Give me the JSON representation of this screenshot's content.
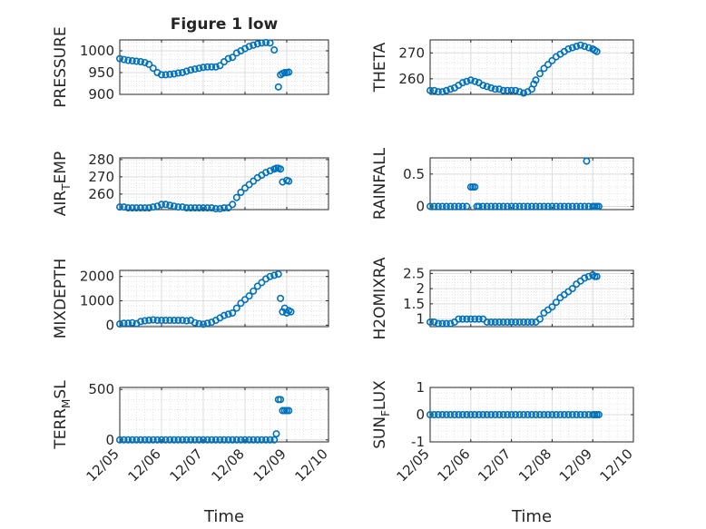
{
  "figure_title": "Figure 1 low",
  "marker_color": "#0072BD",
  "chart_data": [
    {
      "type": "scatter",
      "id": "pressure",
      "title": "Figure 1 low",
      "ylabel": "PRESSURE",
      "xlabel": "",
      "ylim": [
        900,
        1025
      ],
      "yticks": [
        900,
        950,
        1000
      ],
      "ytick_labels": [
        "900",
        "950",
        "1000"
      ],
      "x": [
        0.0,
        0.1,
        0.2,
        0.3,
        0.4,
        0.5,
        0.6,
        0.7,
        0.8,
        0.9,
        1.0,
        1.1,
        1.2,
        1.3,
        1.4,
        1.5,
        1.6,
        1.7,
        1.8,
        1.9,
        2.0,
        2.1,
        2.2,
        2.3,
        2.4,
        2.5,
        2.6,
        2.7,
        2.8,
        2.9,
        3.0,
        3.1,
        3.2,
        3.3,
        3.4,
        3.5,
        3.6,
        3.7,
        3.8,
        3.85,
        3.9,
        3.95,
        4.0,
        4.05
      ],
      "y": [
        982,
        980,
        978,
        977,
        976,
        975,
        973,
        969,
        960,
        950,
        945,
        945,
        946,
        947,
        949,
        950,
        953,
        956,
        958,
        960,
        962,
        963,
        963,
        963,
        966,
        975,
        982,
        985,
        995,
        1000,
        1005,
        1010,
        1013,
        1016,
        1018,
        1019,
        1018,
        1002,
        917,
        945,
        948,
        950,
        950,
        951
      ]
    },
    {
      "type": "scatter",
      "id": "theta",
      "title": "",
      "ylabel": "THETA",
      "xlabel": "",
      "ylim": [
        254,
        275
      ],
      "yticks": [
        260,
        270
      ],
      "ytick_labels": [
        "260",
        "270"
      ],
      "x": [
        0.0,
        0.1,
        0.2,
        0.3,
        0.4,
        0.5,
        0.6,
        0.7,
        0.8,
        0.9,
        1.0,
        1.1,
        1.2,
        1.3,
        1.4,
        1.5,
        1.6,
        1.7,
        1.8,
        1.9,
        2.0,
        2.1,
        2.2,
        2.3,
        2.4,
        2.5,
        2.55,
        2.6,
        2.7,
        2.8,
        2.9,
        3.0,
        3.1,
        3.2,
        3.3,
        3.4,
        3.5,
        3.6,
        3.7,
        3.8,
        3.9,
        4.0,
        4.05,
        4.1
      ],
      "y": [
        255.5,
        255.5,
        255.0,
        255.0,
        255.5,
        256.0,
        256.5,
        257.5,
        258.5,
        259.0,
        259.5,
        259.0,
        258.5,
        257.5,
        257.0,
        256.5,
        256.0,
        256.0,
        255.5,
        255.5,
        255.5,
        255.5,
        255.0,
        254.5,
        255.0,
        256.0,
        258.0,
        259.5,
        262.0,
        264.0,
        265.5,
        267.0,
        268.5,
        269.5,
        270.5,
        271.5,
        272.0,
        272.5,
        273.0,
        272.5,
        272.0,
        271.5,
        271.0,
        270.5
      ]
    },
    {
      "type": "scatter",
      "id": "airtemp",
      "title": "",
      "ylabel": "AIR_TEMP",
      "ylabel_main": "AIR",
      "ylabel_sub": "T",
      "ylabel_tail": "EMP",
      "xlabel": "",
      "ylim": [
        251,
        281
      ],
      "yticks": [
        260,
        270,
        280
      ],
      "ytick_labels": [
        "260",
        "270",
        "280"
      ],
      "x": [
        0.0,
        0.1,
        0.2,
        0.3,
        0.4,
        0.5,
        0.6,
        0.7,
        0.8,
        0.9,
        1.0,
        1.1,
        1.2,
        1.3,
        1.4,
        1.5,
        1.6,
        1.7,
        1.8,
        1.9,
        2.0,
        2.1,
        2.2,
        2.3,
        2.4,
        2.5,
        2.6,
        2.7,
        2.8,
        2.9,
        3.0,
        3.1,
        3.2,
        3.3,
        3.4,
        3.5,
        3.6,
        3.7,
        3.75,
        3.8,
        3.85,
        3.9,
        4.0,
        4.05
      ],
      "y": [
        252.5,
        252.5,
        252.0,
        252.0,
        252.0,
        252.0,
        252.0,
        252.0,
        252.5,
        253.0,
        254.0,
        254.0,
        253.5,
        253.0,
        252.5,
        252.5,
        252.0,
        252.0,
        252.0,
        252.0,
        252.0,
        252.0,
        252.0,
        251.5,
        251.5,
        252.0,
        252.0,
        254.0,
        258.0,
        261.0,
        263.5,
        265.5,
        267.5,
        269.5,
        271.0,
        272.5,
        273.5,
        274.5,
        275.0,
        275.0,
        274.5,
        267.0,
        268.0,
        267.5
      ]
    },
    {
      "type": "scatter",
      "id": "rainfall",
      "title": "",
      "ylabel": "RAINFALL",
      "xlabel": "",
      "ylim": [
        -0.05,
        0.75
      ],
      "yticks": [
        0,
        0.5
      ],
      "ytick_labels": [
        "0",
        "0.5"
      ],
      "x": [
        0.0,
        0.1,
        0.2,
        0.3,
        0.4,
        0.5,
        0.6,
        0.7,
        0.8,
        0.9,
        1.0,
        1.05,
        1.1,
        1.15,
        1.2,
        1.3,
        1.4,
        1.5,
        1.6,
        1.7,
        1.8,
        1.9,
        2.0,
        2.1,
        2.2,
        2.3,
        2.4,
        2.5,
        2.6,
        2.7,
        2.8,
        2.9,
        3.0,
        3.1,
        3.2,
        3.3,
        3.4,
        3.5,
        3.6,
        3.7,
        3.8,
        3.85,
        3.9,
        4.0,
        4.05,
        4.1,
        4.15
      ],
      "y": [
        0,
        0,
        0,
        0,
        0,
        0,
        0,
        0,
        0,
        0,
        0.3,
        0.3,
        0.3,
        0,
        0,
        0,
        0,
        0,
        0,
        0,
        0,
        0,
        0,
        0,
        0,
        0,
        0,
        0,
        0,
        0,
        0,
        0,
        0,
        0,
        0,
        0,
        0,
        0,
        0,
        0,
        0,
        0.7,
        0,
        0,
        0,
        0,
        0
      ]
    },
    {
      "type": "scatter",
      "id": "mixdepth",
      "title": "",
      "ylabel": "MIXDEPTH",
      "xlabel": "",
      "ylim": [
        -60,
        2250
      ],
      "yticks": [
        0,
        1000,
        2000
      ],
      "ytick_labels": [
        "0",
        "1000",
        "2000"
      ],
      "x": [
        0.0,
        0.1,
        0.2,
        0.3,
        0.4,
        0.5,
        0.6,
        0.7,
        0.8,
        0.9,
        1.0,
        1.1,
        1.2,
        1.3,
        1.4,
        1.5,
        1.6,
        1.7,
        1.8,
        1.9,
        2.0,
        2.1,
        2.2,
        2.3,
        2.4,
        2.5,
        2.6,
        2.7,
        2.8,
        2.9,
        3.0,
        3.1,
        3.2,
        3.3,
        3.4,
        3.5,
        3.6,
        3.7,
        3.8,
        3.85,
        3.9,
        3.95,
        4.0,
        4.05,
        4.1
      ],
      "y": [
        50,
        80,
        80,
        100,
        60,
        150,
        180,
        200,
        220,
        200,
        200,
        200,
        200,
        200,
        200,
        200,
        180,
        200,
        100,
        60,
        40,
        80,
        120,
        200,
        300,
        400,
        450,
        500,
        700,
        900,
        1050,
        1200,
        1400,
        1600,
        1750,
        1900,
        2000,
        2050,
        2100,
        1100,
        550,
        700,
        500,
        600,
        550
      ]
    },
    {
      "type": "scatter",
      "id": "h2omixra",
      "title": "",
      "ylabel": "H2OMIXRA",
      "xlabel": "",
      "ylim": [
        0.75,
        2.6
      ],
      "yticks": [
        1,
        1.5,
        2,
        2.5
      ],
      "ytick_labels": [
        "1",
        "1.5",
        "2",
        "2.5"
      ],
      "x": [
        0.0,
        0.1,
        0.2,
        0.3,
        0.4,
        0.5,
        0.6,
        0.7,
        0.8,
        0.9,
        1.0,
        1.1,
        1.2,
        1.3,
        1.4,
        1.5,
        1.6,
        1.7,
        1.8,
        1.9,
        2.0,
        2.1,
        2.2,
        2.3,
        2.4,
        2.5,
        2.6,
        2.7,
        2.8,
        2.9,
        3.0,
        3.1,
        3.2,
        3.3,
        3.4,
        3.5,
        3.6,
        3.7,
        3.8,
        3.9,
        4.0,
        4.05,
        4.1
      ],
      "y": [
        0.9,
        0.9,
        0.85,
        0.85,
        0.85,
        0.85,
        0.9,
        1.0,
        1.0,
        1.0,
        1.0,
        1.0,
        1.0,
        1.0,
        0.9,
        0.9,
        0.9,
        0.9,
        0.9,
        0.9,
        0.9,
        0.9,
        0.9,
        0.9,
        0.9,
        0.9,
        0.9,
        1.0,
        1.2,
        1.3,
        1.4,
        1.55,
        1.7,
        1.8,
        1.9,
        2.0,
        2.15,
        2.25,
        2.35,
        2.4,
        2.45,
        2.4,
        2.4
      ]
    },
    {
      "type": "scatter",
      "id": "terrmsl",
      "title": "",
      "ylabel": "TERR_MSL",
      "ylabel_main": "TERR",
      "ylabel_sub": "M",
      "ylabel_tail": "SL",
      "xlabel": "Time",
      "ylim": [
        -20,
        520
      ],
      "yticks": [
        0,
        500
      ],
      "ytick_labels": [
        "0",
        "500"
      ],
      "x": [
        0.0,
        0.1,
        0.2,
        0.3,
        0.4,
        0.5,
        0.6,
        0.7,
        0.8,
        0.9,
        1.0,
        1.1,
        1.2,
        1.3,
        1.4,
        1.5,
        1.6,
        1.7,
        1.8,
        1.9,
        2.0,
        2.1,
        2.2,
        2.3,
        2.4,
        2.5,
        2.6,
        2.7,
        2.8,
        2.9,
        3.0,
        3.1,
        3.2,
        3.3,
        3.4,
        3.5,
        3.6,
        3.7,
        3.75,
        3.8,
        3.85,
        3.9,
        3.95,
        4.0,
        4.05
      ],
      "y": [
        0,
        0,
        0,
        0,
        0,
        0,
        0,
        0,
        0,
        0,
        0,
        0,
        0,
        0,
        0,
        0,
        0,
        0,
        0,
        0,
        0,
        0,
        0,
        0,
        0,
        0,
        0,
        0,
        0,
        0,
        0,
        0,
        0,
        0,
        0,
        0,
        0,
        0,
        60,
        400,
        400,
        290,
        290,
        290,
        290
      ]
    },
    {
      "type": "scatter",
      "id": "sunflux",
      "title": "",
      "ylabel": "SUN_FLUX",
      "ylabel_main": "SUN",
      "ylabel_sub": "F",
      "ylabel_tail": "LUX",
      "xlabel": "Time",
      "ylim": [
        -1,
        1
      ],
      "yticks": [
        -1,
        0,
        1
      ],
      "ytick_labels": [
        "-1",
        "0",
        "1"
      ],
      "x": [
        0.0,
        0.1,
        0.2,
        0.3,
        0.4,
        0.5,
        0.6,
        0.7,
        0.8,
        0.9,
        1.0,
        1.1,
        1.2,
        1.3,
        1.4,
        1.5,
        1.6,
        1.7,
        1.8,
        1.9,
        2.0,
        2.1,
        2.2,
        2.3,
        2.4,
        2.5,
        2.6,
        2.7,
        2.8,
        2.9,
        3.0,
        3.1,
        3.2,
        3.3,
        3.4,
        3.5,
        3.6,
        3.7,
        3.8,
        3.9,
        4.0,
        4.05,
        4.1,
        4.15
      ],
      "y": [
        0,
        0,
        0,
        0,
        0,
        0,
        0,
        0,
        0,
        0,
        0,
        0,
        0,
        0,
        0,
        0,
        0,
        0,
        0,
        0,
        0,
        0,
        0,
        0,
        0,
        0,
        0,
        0,
        0,
        0,
        0,
        0,
        0,
        0,
        0,
        0,
        0,
        0,
        0,
        0,
        0,
        0,
        0,
        0
      ]
    }
  ],
  "x_axis": {
    "xlim": [
      0,
      5
    ],
    "ticks": [
      0,
      1,
      2,
      3,
      4,
      5
    ],
    "tick_labels": [
      "12/05",
      "12/06",
      "12/07",
      "12/08",
      "12/09",
      "12/10"
    ],
    "xlabel": "Time"
  },
  "grid": true
}
